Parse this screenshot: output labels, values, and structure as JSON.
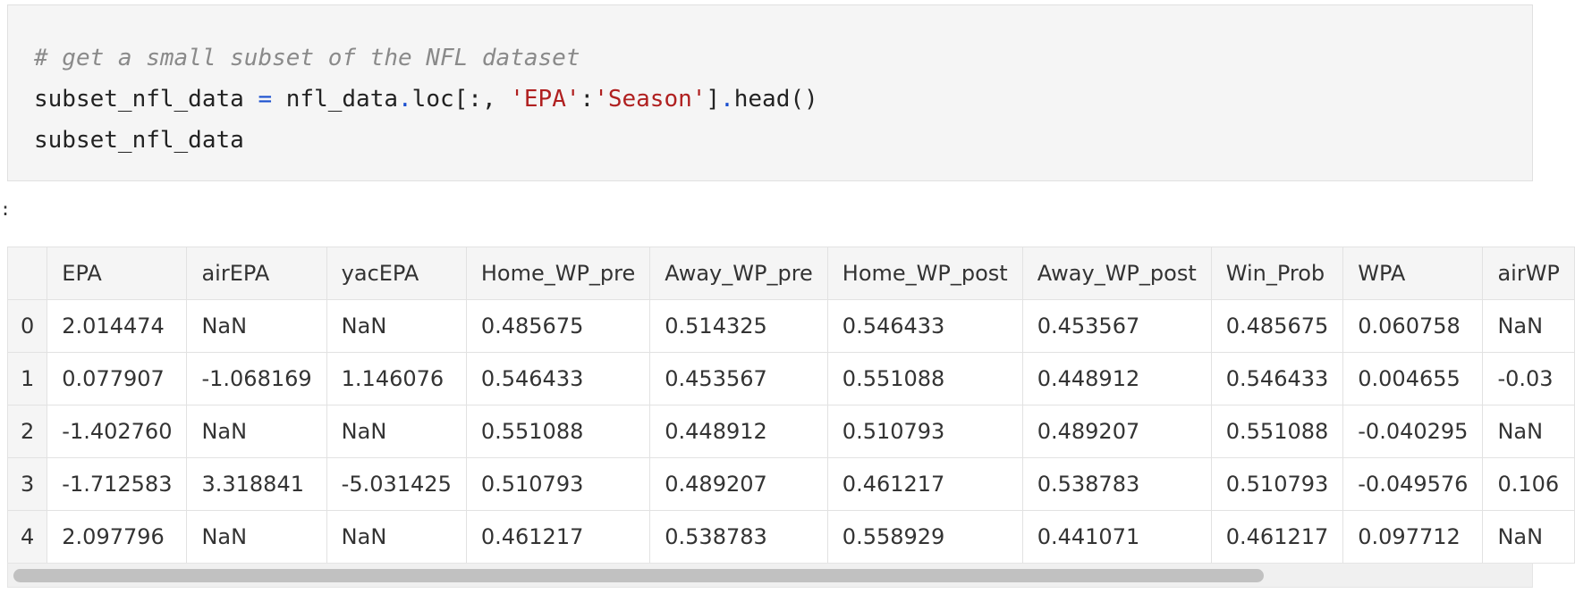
{
  "code": {
    "comment": "# get a small subset of the NFL dataset",
    "line2_var": "subset_nfl_data",
    "line2_eq": " = ",
    "line2_obj": "nfl_data",
    "line2_dot1": ".",
    "line2_loc": "loc[:, ",
    "line2_str1": "'EPA'",
    "line2_colon": ":",
    "line2_str2": "'Season'",
    "line2_close": "]",
    "line2_dot2": ".",
    "line2_head": "head()",
    "line3": "subset_nfl_data"
  },
  "output": {
    "prompt": ":",
    "columns": [
      "",
      "EPA",
      "airEPA",
      "yacEPA",
      "Home_WP_pre",
      "Away_WP_pre",
      "Home_WP_post",
      "Away_WP_post",
      "Win_Prob",
      "WPA",
      "airWP"
    ],
    "rows": [
      [
        "0",
        "2.014474",
        "NaN",
        "NaN",
        "0.485675",
        "0.514325",
        "0.546433",
        "0.453567",
        "0.485675",
        "0.060758",
        "NaN"
      ],
      [
        "1",
        "0.077907",
        "-1.068169",
        "1.146076",
        "0.546433",
        "0.453567",
        "0.551088",
        "0.448912",
        "0.546433",
        "0.004655",
        "-0.03"
      ],
      [
        "2",
        "-1.402760",
        "NaN",
        "NaN",
        "0.551088",
        "0.448912",
        "0.510793",
        "0.489207",
        "0.551088",
        "-0.040295",
        "NaN"
      ],
      [
        "3",
        "-1.712583",
        "3.318841",
        "-5.031425",
        "0.510793",
        "0.489207",
        "0.461217",
        "0.538783",
        "0.510793",
        "-0.049576",
        "0.106"
      ],
      [
        "4",
        "2.097796",
        "NaN",
        "NaN",
        "0.461217",
        "0.538783",
        "0.558929",
        "0.441071",
        "0.461217",
        "0.097712",
        "NaN"
      ]
    ]
  }
}
